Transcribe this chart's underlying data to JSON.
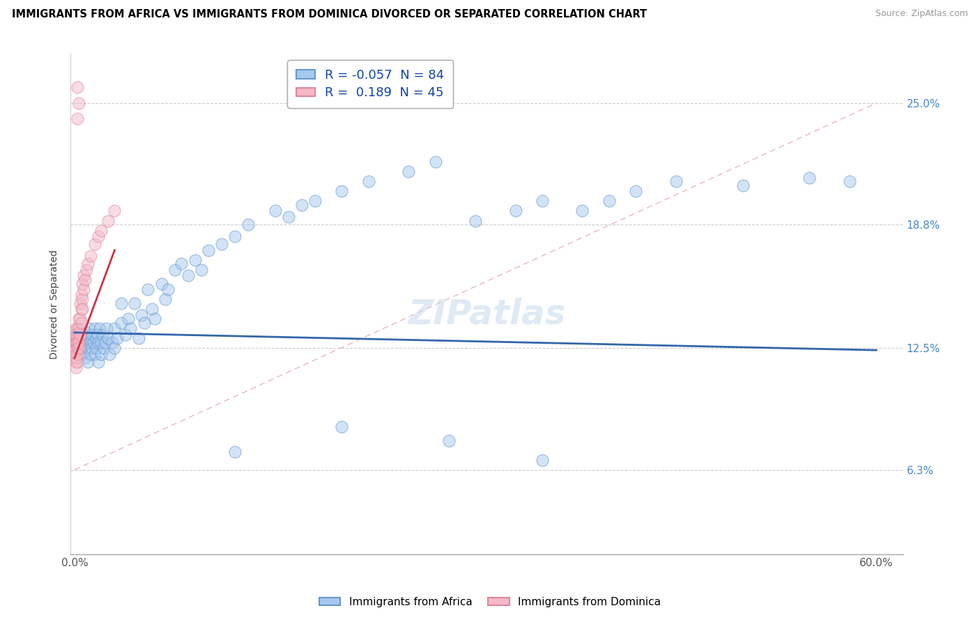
{
  "title": "IMMIGRANTS FROM AFRICA VS IMMIGRANTS FROM DOMINICA DIVORCED OR SEPARATED CORRELATION CHART",
  "source": "Source: ZipAtlas.com",
  "ylabel": "Divorced or Separated",
  "xlim": [
    -0.003,
    0.62
  ],
  "ylim": [
    0.02,
    0.275
  ],
  "ytick_values": [
    0.063,
    0.125,
    0.188,
    0.25
  ],
  "ytick_labels": [
    "6.3%",
    "12.5%",
    "18.8%",
    "25.0%"
  ],
  "xtick_values": [
    0.0,
    0.1,
    0.2,
    0.3,
    0.4,
    0.5,
    0.6
  ],
  "xtick_labels": [
    "0.0%",
    "",
    "",
    "",
    "",
    "",
    "60.0%"
  ],
  "color_africa": "#a8c8f0",
  "color_africa_edge": "#6699cc",
  "color_dominica": "#f4b8c8",
  "color_dominica_edge": "#dd8899",
  "color_africa_line": "#3366aa",
  "color_dominica_line": "#cc3344",
  "legend_r_africa": "-0.057",
  "legend_n_africa": "84",
  "legend_r_dominica": "0.189",
  "legend_n_dominica": "45",
  "africa_x": [
    0.003,
    0.004,
    0.005,
    0.006,
    0.007,
    0.007,
    0.008,
    0.008,
    0.009,
    0.01,
    0.01,
    0.01,
    0.011,
    0.012,
    0.012,
    0.013,
    0.013,
    0.014,
    0.015,
    0.015,
    0.016,
    0.016,
    0.017,
    0.018,
    0.018,
    0.019,
    0.02,
    0.02,
    0.021,
    0.022,
    0.023,
    0.024,
    0.025,
    0.026,
    0.028,
    0.03,
    0.03,
    0.032,
    0.035,
    0.035,
    0.038,
    0.04,
    0.042,
    0.045,
    0.048,
    0.05,
    0.052,
    0.055,
    0.058,
    0.06,
    0.065,
    0.068,
    0.07,
    0.075,
    0.08,
    0.085,
    0.09,
    0.095,
    0.1,
    0.11,
    0.12,
    0.13,
    0.15,
    0.16,
    0.17,
    0.18,
    0.2,
    0.22,
    0.25,
    0.27,
    0.3,
    0.33,
    0.35,
    0.38,
    0.4,
    0.42,
    0.45,
    0.5,
    0.55,
    0.58,
    0.12,
    0.2,
    0.28,
    0.35
  ],
  "africa_y": [
    0.125,
    0.128,
    0.122,
    0.13,
    0.127,
    0.132,
    0.128,
    0.12,
    0.133,
    0.125,
    0.13,
    0.118,
    0.135,
    0.128,
    0.122,
    0.132,
    0.125,
    0.128,
    0.135,
    0.122,
    0.13,
    0.125,
    0.132,
    0.128,
    0.118,
    0.135,
    0.128,
    0.122,
    0.132,
    0.125,
    0.128,
    0.135,
    0.13,
    0.122,
    0.128,
    0.135,
    0.125,
    0.13,
    0.148,
    0.138,
    0.132,
    0.14,
    0.135,
    0.148,
    0.13,
    0.142,
    0.138,
    0.155,
    0.145,
    0.14,
    0.158,
    0.15,
    0.155,
    0.165,
    0.168,
    0.162,
    0.17,
    0.165,
    0.175,
    0.178,
    0.182,
    0.188,
    0.195,
    0.192,
    0.198,
    0.2,
    0.205,
    0.21,
    0.215,
    0.22,
    0.19,
    0.195,
    0.2,
    0.195,
    0.2,
    0.205,
    0.21,
    0.208,
    0.212,
    0.21,
    0.072,
    0.085,
    0.078,
    0.068
  ],
  "dominica_x": [
    0.001,
    0.001,
    0.001,
    0.001,
    0.001,
    0.001,
    0.001,
    0.001,
    0.001,
    0.001,
    0.002,
    0.002,
    0.002,
    0.002,
    0.002,
    0.002,
    0.002,
    0.003,
    0.003,
    0.003,
    0.003,
    0.003,
    0.004,
    0.004,
    0.004,
    0.005,
    0.005,
    0.005,
    0.006,
    0.006,
    0.006,
    0.007,
    0.007,
    0.008,
    0.009,
    0.01,
    0.012,
    0.015,
    0.018,
    0.02,
    0.025,
    0.03,
    0.002,
    0.003,
    0.002
  ],
  "dominica_y": [
    0.125,
    0.128,
    0.132,
    0.122,
    0.13,
    0.118,
    0.135,
    0.128,
    0.12,
    0.115,
    0.13,
    0.125,
    0.132,
    0.128,
    0.118,
    0.122,
    0.135,
    0.135,
    0.128,
    0.14,
    0.133,
    0.125,
    0.14,
    0.148,
    0.132,
    0.145,
    0.152,
    0.138,
    0.15,
    0.158,
    0.145,
    0.155,
    0.162,
    0.16,
    0.165,
    0.168,
    0.172,
    0.178,
    0.182,
    0.185,
    0.19,
    0.195,
    0.258,
    0.25,
    0.242
  ],
  "africa_trend_x": [
    0.0,
    0.6
  ],
  "africa_trend_y": [
    0.133,
    0.124
  ],
  "dominica_trend_x": [
    0.0,
    0.03
  ],
  "dominica_trend_y": [
    0.12,
    0.175
  ],
  "diag_line_x": [
    0.0,
    0.6
  ],
  "diag_line_y": [
    0.063,
    0.25
  ]
}
